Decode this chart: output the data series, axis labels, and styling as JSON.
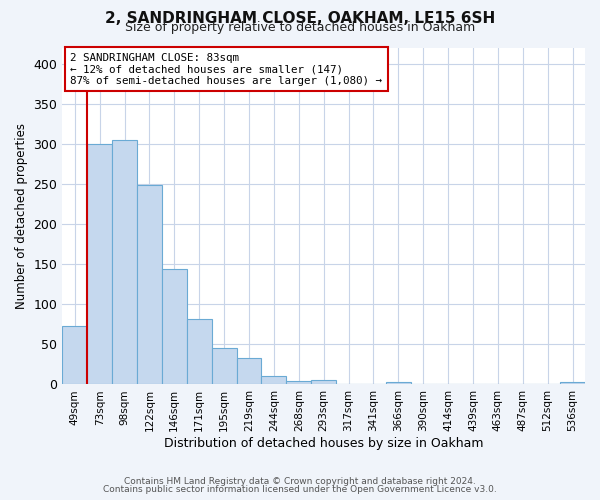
{
  "title": "2, SANDRINGHAM CLOSE, OAKHAM, LE15 6SH",
  "subtitle": "Size of property relative to detached houses in Oakham",
  "xlabel": "Distribution of detached houses by size in Oakham",
  "ylabel": "Number of detached properties",
  "bar_labels": [
    "49sqm",
    "73sqm",
    "98sqm",
    "122sqm",
    "146sqm",
    "171sqm",
    "195sqm",
    "219sqm",
    "244sqm",
    "268sqm",
    "293sqm",
    "317sqm",
    "341sqm",
    "366sqm",
    "390sqm",
    "414sqm",
    "439sqm",
    "463sqm",
    "487sqm",
    "512sqm",
    "536sqm"
  ],
  "bar_values": [
    73,
    300,
    305,
    249,
    144,
    82,
    45,
    33,
    10,
    4,
    6,
    0,
    0,
    3,
    0,
    0,
    0,
    0,
    0,
    0,
    3
  ],
  "bar_color": "#c5d8ee",
  "bar_edge_color": "#6aaad4",
  "vline_color": "#cc0000",
  "vline_x_idx": 1,
  "annotation_text": "2 SANDRINGHAM CLOSE: 83sqm\n← 12% of detached houses are smaller (147)\n87% of semi-detached houses are larger (1,080) →",
  "annotation_box_facecolor": "#ffffff",
  "annotation_box_edgecolor": "#cc0000",
  "ylim": [
    0,
    420
  ],
  "yticks": [
    0,
    50,
    100,
    150,
    200,
    250,
    300,
    350,
    400
  ],
  "figure_bg": "#f0f4fa",
  "plot_bg": "#ffffff",
  "grid_color": "#c8d4e8",
  "footer_line1": "Contains HM Land Registry data © Crown copyright and database right 2024.",
  "footer_line2": "Contains public sector information licensed under the Open Government Licence v3.0."
}
